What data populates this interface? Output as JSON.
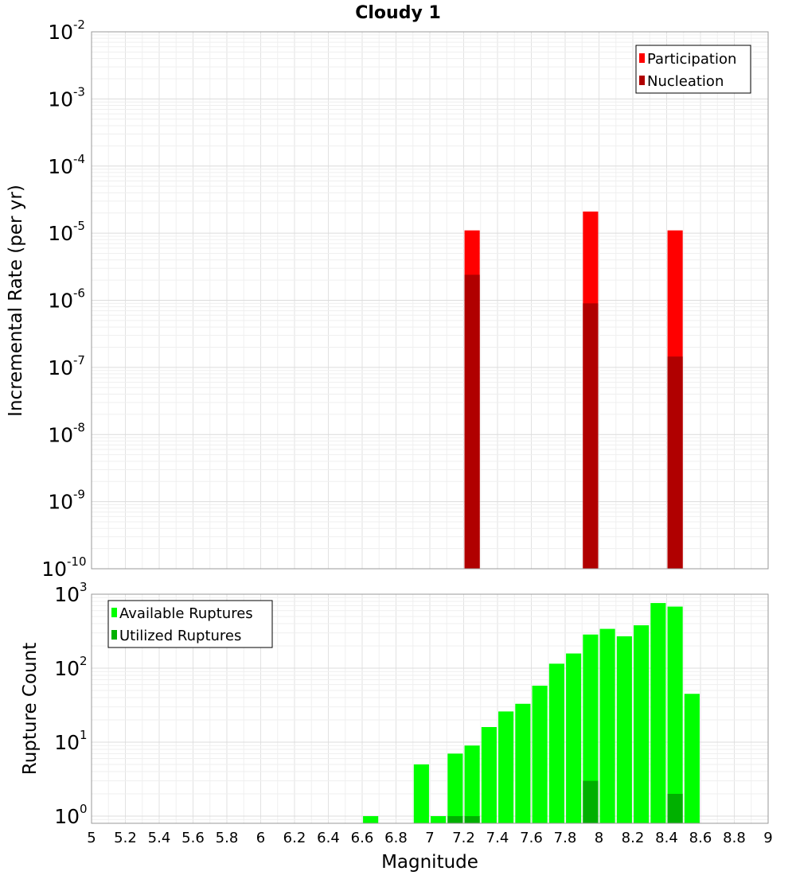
{
  "chart_data": [
    {
      "type": "bar",
      "title": "Cloudy 1",
      "ylabel": "Incremental Rate (per yr)",
      "xlabel": "",
      "yscale": "log",
      "ylim": [
        1e-10,
        0.01
      ],
      "xlim": [
        5,
        9
      ],
      "grid": true,
      "legend_position": "top-right",
      "y_ticks": [
        {
          "base": "10",
          "exp": "-2"
        },
        {
          "base": "10",
          "exp": "-3"
        },
        {
          "base": "10",
          "exp": "-4"
        },
        {
          "base": "10",
          "exp": "-5"
        },
        {
          "base": "10",
          "exp": "-6"
        },
        {
          "base": "10",
          "exp": "-7"
        },
        {
          "base": "10",
          "exp": "-8"
        },
        {
          "base": "10",
          "exp": "-9"
        },
        {
          "base": "10",
          "exp": "-10"
        }
      ],
      "legend": [
        {
          "label": "Participation",
          "color": "#ff0000"
        },
        {
          "label": "Nucleation",
          "color": "#b00000"
        }
      ],
      "bar_width": 0.09,
      "series": [
        {
          "name": "Participation",
          "color": "#ff0000",
          "points": [
            {
              "x": 7.25,
              "y": 1.1e-05
            },
            {
              "x": 7.95,
              "y": 2.1e-05
            },
            {
              "x": 8.45,
              "y": 1.1e-05
            }
          ]
        },
        {
          "name": "Nucleation",
          "color": "#b00000",
          "points": [
            {
              "x": 7.25,
              "y": 2.4e-06
            },
            {
              "x": 7.95,
              "y": 9e-07
            },
            {
              "x": 8.45,
              "y": 1.45e-07
            }
          ]
        }
      ]
    },
    {
      "type": "bar",
      "ylabel": "Rupture Count",
      "xlabel": "Magnitude",
      "yscale": "log",
      "ylim": [
        0.8,
        1000
      ],
      "xlim": [
        5,
        9
      ],
      "grid": true,
      "legend_position": "top-left",
      "y_ticks": [
        {
          "value": 1000,
          "base": "10",
          "exp": "3"
        },
        {
          "value": 100,
          "base": "10",
          "exp": "2"
        },
        {
          "value": 10,
          "base": "10",
          "exp": "1"
        },
        {
          "value": 1,
          "base": "10",
          "exp": "0"
        }
      ],
      "x_tick_labels": [
        "5",
        "5.2",
        "5.4",
        "5.6",
        "5.8",
        "6",
        "6.2",
        "6.4",
        "6.6",
        "6.8",
        "7",
        "7.2",
        "7.4",
        "7.6",
        "7.8",
        "8",
        "8.2",
        "8.4",
        "8.6",
        "8.8",
        "9"
      ],
      "legend": [
        {
          "label": "Available Ruptures",
          "color": "#00ff00"
        },
        {
          "label": "Utilized Ruptures",
          "color": "#00b000"
        }
      ],
      "bar_width": 0.09,
      "series": [
        {
          "name": "Available Ruptures",
          "color": "#00ff00",
          "points": [
            {
              "x": 6.65,
              "y": 1
            },
            {
              "x": 6.95,
              "y": 5
            },
            {
              "x": 7.05,
              "y": 1
            },
            {
              "x": 7.15,
              "y": 7
            },
            {
              "x": 7.25,
              "y": 9
            },
            {
              "x": 7.35,
              "y": 16
            },
            {
              "x": 7.45,
              "y": 26
            },
            {
              "x": 7.55,
              "y": 33
            },
            {
              "x": 7.65,
              "y": 58
            },
            {
              "x": 7.75,
              "y": 115
            },
            {
              "x": 7.85,
              "y": 158
            },
            {
              "x": 7.95,
              "y": 285
            },
            {
              "x": 8.05,
              "y": 340
            },
            {
              "x": 8.15,
              "y": 270
            },
            {
              "x": 8.25,
              "y": 380
            },
            {
              "x": 8.35,
              "y": 760
            },
            {
              "x": 8.45,
              "y": 680
            },
            {
              "x": 8.55,
              "y": 45
            }
          ]
        },
        {
          "name": "Utilized Ruptures",
          "color": "#00b000",
          "points": [
            {
              "x": 7.15,
              "y": 1
            },
            {
              "x": 7.25,
              "y": 1
            },
            {
              "x": 7.95,
              "y": 3
            },
            {
              "x": 8.45,
              "y": 2
            }
          ]
        }
      ]
    }
  ]
}
